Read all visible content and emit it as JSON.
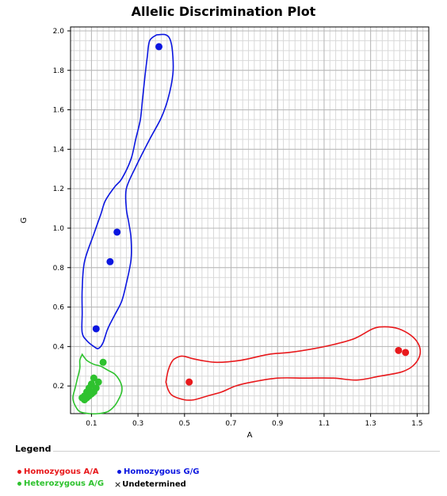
{
  "chart_data": {
    "type": "scatter",
    "title": "Allelic Discrimination Plot",
    "xlabel": "A",
    "ylabel": "G",
    "xlim": [
      0.01,
      1.55
    ],
    "ylim": [
      0.06,
      2.02
    ],
    "grid": true,
    "x_ticks": [
      0.1,
      0.3,
      0.5,
      0.7,
      0.9,
      1.1,
      1.3,
      1.5
    ],
    "y_ticks": [
      0.2,
      0.4,
      0.6,
      0.8,
      1.0,
      1.2,
      1.4,
      1.6,
      1.8,
      2.0
    ],
    "x_tick_labels": [
      "0.1",
      "0.3",
      "0.5",
      "0.7",
      "0.9",
      "1.1",
      "1.3",
      "1.5"
    ],
    "y_tick_labels": [
      "0.2",
      "0.4",
      "0.6",
      "0.8",
      "1.0",
      "1.2",
      "1.4",
      "1.6",
      "1.8",
      "2.0"
    ],
    "series": [
      {
        "name": "Homozygous A/A",
        "color": "#e8191c",
        "points": [
          [
            0.52,
            0.22
          ],
          [
            1.42,
            0.38
          ],
          [
            1.45,
            0.37
          ]
        ],
        "hull": [
          [
            0.42,
            0.22
          ],
          [
            0.43,
            0.28
          ],
          [
            0.45,
            0.33
          ],
          [
            0.48,
            0.35
          ],
          [
            0.5,
            0.35
          ],
          [
            0.53,
            0.34
          ],
          [
            0.57,
            0.33
          ],
          [
            0.64,
            0.32
          ],
          [
            0.74,
            0.33
          ],
          [
            0.86,
            0.36
          ],
          [
            0.95,
            0.37
          ],
          [
            1.06,
            0.39
          ],
          [
            1.14,
            0.41
          ],
          [
            1.23,
            0.44
          ],
          [
            1.31,
            0.49
          ],
          [
            1.36,
            0.5
          ],
          [
            1.42,
            0.49
          ],
          [
            1.48,
            0.45
          ],
          [
            1.51,
            0.4
          ],
          [
            1.51,
            0.35
          ],
          [
            1.48,
            0.3
          ],
          [
            1.43,
            0.27
          ],
          [
            1.34,
            0.25
          ],
          [
            1.24,
            0.23
          ],
          [
            1.14,
            0.24
          ],
          [
            1.02,
            0.24
          ],
          [
            0.9,
            0.24
          ],
          [
            0.79,
            0.22
          ],
          [
            0.72,
            0.2
          ],
          [
            0.66,
            0.17
          ],
          [
            0.6,
            0.15
          ],
          [
            0.54,
            0.13
          ],
          [
            0.5,
            0.13
          ],
          [
            0.45,
            0.15
          ],
          [
            0.43,
            0.18
          ],
          [
            0.42,
            0.22
          ]
        ]
      },
      {
        "name": "Homozygous G/G",
        "color": "#0b16e0",
        "points": [
          [
            0.39,
            1.92
          ],
          [
            0.21,
            0.98
          ],
          [
            0.18,
            0.83
          ],
          [
            0.12,
            0.49
          ]
        ],
        "hull": [
          [
            0.38,
            1.98
          ],
          [
            0.35,
            1.95
          ],
          [
            0.34,
            1.87
          ],
          [
            0.33,
            1.77
          ],
          [
            0.32,
            1.66
          ],
          [
            0.31,
            1.55
          ],
          [
            0.29,
            1.45
          ],
          [
            0.27,
            1.35
          ],
          [
            0.23,
            1.25
          ],
          [
            0.2,
            1.21
          ],
          [
            0.16,
            1.14
          ],
          [
            0.14,
            1.07
          ],
          [
            0.11,
            0.97
          ],
          [
            0.07,
            0.83
          ],
          [
            0.06,
            0.69
          ],
          [
            0.06,
            0.57
          ],
          [
            0.06,
            0.47
          ],
          [
            0.08,
            0.43
          ],
          [
            0.11,
            0.4
          ],
          [
            0.13,
            0.39
          ],
          [
            0.15,
            0.42
          ],
          [
            0.17,
            0.49
          ],
          [
            0.2,
            0.56
          ],
          [
            0.23,
            0.63
          ],
          [
            0.25,
            0.72
          ],
          [
            0.27,
            0.84
          ],
          [
            0.27,
            0.95
          ],
          [
            0.26,
            1.03
          ],
          [
            0.25,
            1.1
          ],
          [
            0.25,
            1.2
          ],
          [
            0.29,
            1.31
          ],
          [
            0.35,
            1.45
          ],
          [
            0.4,
            1.56
          ],
          [
            0.43,
            1.66
          ],
          [
            0.45,
            1.78
          ],
          [
            0.45,
            1.87
          ],
          [
            0.44,
            1.95
          ],
          [
            0.42,
            1.98
          ],
          [
            0.38,
            1.98
          ]
        ]
      },
      {
        "name": "Heterozygous A/G",
        "color": "#2ec22e",
        "points": [
          [
            0.15,
            0.32
          ],
          [
            0.11,
            0.24
          ],
          [
            0.13,
            0.22
          ],
          [
            0.1,
            0.21
          ],
          [
            0.09,
            0.19
          ],
          [
            0.12,
            0.19
          ],
          [
            0.08,
            0.17
          ],
          [
            0.11,
            0.17
          ],
          [
            0.07,
            0.15
          ],
          [
            0.09,
            0.15
          ],
          [
            0.06,
            0.14
          ],
          [
            0.08,
            0.14
          ],
          [
            0.1,
            0.16
          ],
          [
            0.07,
            0.13
          ]
        ],
        "hull": [
          [
            0.06,
            0.36
          ],
          [
            0.08,
            0.33
          ],
          [
            0.11,
            0.31
          ],
          [
            0.14,
            0.3
          ],
          [
            0.17,
            0.28
          ],
          [
            0.2,
            0.26
          ],
          [
            0.22,
            0.23
          ],
          [
            0.23,
            0.2
          ],
          [
            0.23,
            0.17
          ],
          [
            0.22,
            0.14
          ],
          [
            0.2,
            0.1
          ],
          [
            0.17,
            0.07
          ],
          [
            0.13,
            0.06
          ],
          [
            0.09,
            0.06
          ],
          [
            0.05,
            0.07
          ],
          [
            0.03,
            0.1
          ],
          [
            0.02,
            0.14
          ],
          [
            0.03,
            0.19
          ],
          [
            0.04,
            0.24
          ],
          [
            0.05,
            0.29
          ],
          [
            0.05,
            0.33
          ],
          [
            0.06,
            0.36
          ]
        ]
      },
      {
        "name": "Undetermined",
        "color": "#000000",
        "points": []
      }
    ],
    "legend_title": "Legend",
    "legend_placement": "bottom"
  }
}
